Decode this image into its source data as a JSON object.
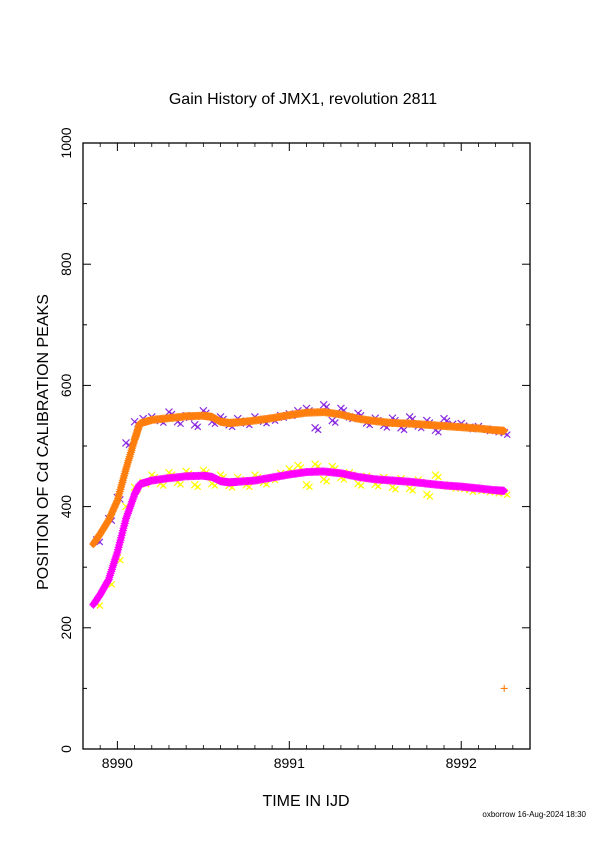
{
  "chart_data": {
    "type": "scatter",
    "title": "Gain History of JMX1, revolution 2811",
    "xlabel": "TIME IN IJD",
    "ylabel": "POSITION OF Cd CALIBRATION PEAKS",
    "xlim": [
      8989.8,
      8992.4
    ],
    "ylim": [
      0,
      1000
    ],
    "xticks": [
      8990,
      8991,
      8992
    ],
    "xtick_labels": [
      "8990",
      "8991",
      "8992"
    ],
    "yticks": [
      0,
      200,
      400,
      600,
      800,
      1000
    ],
    "ytick_labels": [
      "0",
      "200",
      "400",
      "600",
      "800",
      "1000"
    ],
    "grid": false,
    "legend": "none",
    "footer": "oxborrow 16-Aug-2024 18:30",
    "series": [
      {
        "color": "#8a2be2",
        "marker": "x",
        "kind": "scatter",
        "x": [
          8989.88,
          8989.95,
          8990.0,
          8990.05,
          8990.1,
          8990.15,
          8990.2,
          8990.25,
          8990.3,
          8990.35,
          8990.4,
          8990.45,
          8990.5,
          8990.55,
          8990.6,
          8990.65,
          8990.7,
          8990.75,
          8990.8,
          8990.85,
          8990.9,
          8990.95,
          8991.0,
          8991.05,
          8991.1,
          8991.15,
          8991.2,
          8991.25,
          8991.3,
          8991.35,
          8991.4,
          8991.45,
          8991.5,
          8991.55,
          8991.6,
          8991.65,
          8991.7,
          8991.75,
          8991.8,
          8991.85,
          8991.9,
          8991.95,
          8992.0,
          8992.05,
          8992.1,
          8992.15,
          8992.2,
          8992.25
        ],
        "y": [
          345,
          380,
          415,
          505,
          540,
          545,
          548,
          542,
          556,
          540,
          550,
          535,
          558,
          540,
          548,
          535,
          545,
          538,
          548,
          541,
          545,
          550,
          553,
          558,
          562,
          530,
          568,
          542,
          562,
          548,
          554,
          538,
          546,
          534,
          546,
          530,
          548,
          533,
          542,
          526,
          545,
          536,
          537,
          531,
          532,
          528,
          526,
          522
        ]
      },
      {
        "color": "#ffff00",
        "marker": "x",
        "kind": "scatter",
        "x": [
          8989.88,
          8989.95,
          8990.0,
          8990.05,
          8990.1,
          8990.15,
          8990.2,
          8990.25,
          8990.3,
          8990.35,
          8990.4,
          8990.45,
          8990.5,
          8990.55,
          8990.6,
          8990.65,
          8990.7,
          8990.75,
          8990.8,
          8990.85,
          8990.9,
          8990.95,
          8991.0,
          8991.05,
          8991.1,
          8991.15,
          8991.2,
          8991.25,
          8991.3,
          8991.35,
          8991.4,
          8991.45,
          8991.5,
          8991.55,
          8991.6,
          8991.65,
          8991.7,
          8991.75,
          8991.8,
          8991.85,
          8991.9,
          8991.95,
          8992.0,
          8992.05,
          8992.1,
          8992.15,
          8992.2,
          8992.25
        ],
        "y": [
          240,
          275,
          315,
          400,
          432,
          440,
          452,
          438,
          456,
          440,
          458,
          436,
          460,
          438,
          452,
          435,
          448,
          436,
          452,
          440,
          447,
          455,
          462,
          468,
          436,
          470,
          445,
          466,
          448,
          456,
          438,
          450,
          437,
          448,
          432,
          446,
          430,
          444,
          420,
          452,
          436,
          433,
          432,
          428,
          429,
          427,
          425,
          423
        ]
      },
      {
        "color": "#ff7f0e",
        "marker": "+",
        "kind": "fit",
        "x": [
          8989.86,
          8989.9,
          8989.95,
          8990.0,
          8990.05,
          8990.1,
          8990.13,
          8990.2,
          8990.3,
          8990.4,
          8990.5,
          8990.55,
          8990.6,
          8990.65,
          8990.7,
          8990.8,
          8990.9,
          8991.0,
          8991.1,
          8991.2,
          8991.3,
          8991.4,
          8991.5,
          8991.6,
          8991.7,
          8991.8,
          8991.9,
          8992.0,
          8992.1,
          8992.2,
          8992.25
        ],
        "y": [
          338,
          355,
          378,
          410,
          462,
          510,
          537,
          543,
          546,
          549,
          550,
          548,
          540,
          538,
          539,
          542,
          546,
          551,
          555,
          556,
          552,
          545,
          541,
          538,
          537,
          535,
          533,
          531,
          529,
          526,
          525
        ]
      },
      {
        "color": "#ff00ff",
        "marker": "+",
        "kind": "fit",
        "x": [
          8989.86,
          8989.9,
          8989.95,
          8990.0,
          8990.05,
          8990.1,
          8990.13,
          8990.2,
          8990.3,
          8990.4,
          8990.5,
          8990.55,
          8990.6,
          8990.65,
          8990.7,
          8990.8,
          8990.9,
          8991.0,
          8991.1,
          8991.2,
          8991.3,
          8991.4,
          8991.5,
          8991.6,
          8991.7,
          8991.8,
          8991.9,
          8992.0,
          8992.1,
          8992.2,
          8992.25
        ],
        "y": [
          238,
          255,
          280,
          325,
          380,
          420,
          437,
          443,
          447,
          450,
          451,
          449,
          442,
          440,
          441,
          443,
          448,
          453,
          457,
          458,
          455,
          449,
          445,
          443,
          441,
          438,
          435,
          433,
          430,
          427,
          426
        ]
      },
      {
        "color": "#ff7f0e",
        "marker": "+",
        "kind": "scatter",
        "x": [
          8992.25
        ],
        "y": [
          100
        ]
      }
    ]
  }
}
